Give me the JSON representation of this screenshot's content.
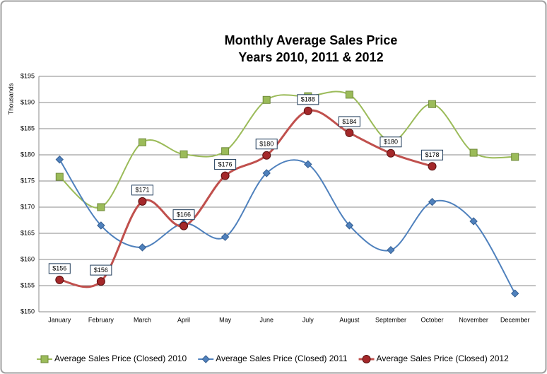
{
  "chart_data": {
    "type": "line",
    "title": "Monthly Average Sales Price",
    "subtitle": "Years 2010, 2011 & 2012",
    "y_label": "Thousands",
    "categories": [
      "January",
      "February",
      "March",
      "April",
      "May",
      "June",
      "July",
      "August",
      "September",
      "October",
      "November",
      "December"
    ],
    "ylim": [
      150,
      195
    ],
    "yticks": [
      {
        "value": 150,
        "label": "$150"
      },
      {
        "value": 155,
        "label": "$155"
      },
      {
        "value": 160,
        "label": "$160"
      },
      {
        "value": 165,
        "label": "$165"
      },
      {
        "value": 170,
        "label": "$170"
      },
      {
        "value": 175,
        "label": "$175"
      },
      {
        "value": 180,
        "label": "$180"
      },
      {
        "value": 185,
        "label": "$185"
      },
      {
        "value": 190,
        "label": "$190"
      },
      {
        "value": 195,
        "label": "$195"
      }
    ],
    "grid": true,
    "smooth": true,
    "legend": "bottom",
    "series": [
      {
        "name": "Average Sales Price (Closed) 2010",
        "color": "#9bbb59",
        "marker": "square",
        "values": [
          175.8,
          170,
          182.4,
          180.1,
          180.7,
          190.5,
          191.2,
          191.5,
          182.6,
          189.7,
          180.4,
          179.6
        ]
      },
      {
        "name": "Average Sales Price (Closed) 2011",
        "color": "#4f81bd",
        "marker": "diamond",
        "values": [
          179.1,
          166.5,
          162.3,
          166.9,
          164.3,
          176.5,
          178.2,
          166.5,
          161.8,
          171,
          167.3,
          153.5
        ]
      },
      {
        "name": "Average Sales Price (Closed) 2012",
        "color": "#c0504d",
        "marker": "circle",
        "values": [
          156.1,
          155.8,
          171.1,
          166.4,
          176,
          179.9,
          188.4,
          184.2,
          180.3,
          177.8,
          null,
          null
        ],
        "value_labels": [
          "$156",
          "$156",
          "$171",
          "$166",
          "$176",
          "$180",
          "$188",
          "$184",
          "$180",
          "$178",
          null,
          null
        ]
      }
    ]
  }
}
